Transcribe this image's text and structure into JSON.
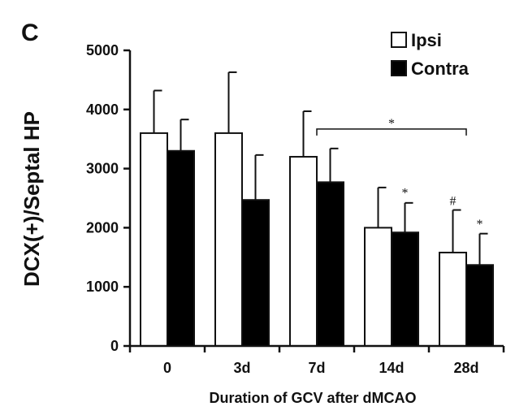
{
  "panel_label": "C",
  "chart_data": {
    "type": "bar",
    "title": "",
    "xlabel": "Duration of GCV after dMCAO",
    "ylabel": "DCX(+)/Septal HP",
    "categories": [
      "0",
      "3d",
      "7d",
      "14d",
      "28d"
    ],
    "ylim": [
      0,
      5000
    ],
    "yticks": [
      0,
      1000,
      2000,
      3000,
      4000,
      5000
    ],
    "grid": false,
    "legend_position": "top-right",
    "series": [
      {
        "name": "Ipsi",
        "color": "#ffffff",
        "values": [
          3600,
          3600,
          3200,
          2000,
          1580
        ],
        "errors": [
          720,
          1030,
          770,
          680,
          720
        ]
      },
      {
        "name": "Contra",
        "color": "#000000",
        "values": [
          3300,
          2470,
          2770,
          1920,
          1370
        ],
        "errors": [
          530,
          760,
          570,
          500,
          530
        ]
      }
    ],
    "annotations": [
      {
        "text": "*",
        "type": "bracket",
        "from_category": "7d",
        "to_category": "28d",
        "y": 3670
      },
      {
        "text": "*",
        "category": "14d",
        "series": "Contra",
        "y": 2520
      },
      {
        "text": "#",
        "category": "28d",
        "series": "Ipsi",
        "y": 2380
      },
      {
        "text": "*",
        "category": "28d",
        "series": "Contra",
        "y": 1990
      }
    ]
  }
}
